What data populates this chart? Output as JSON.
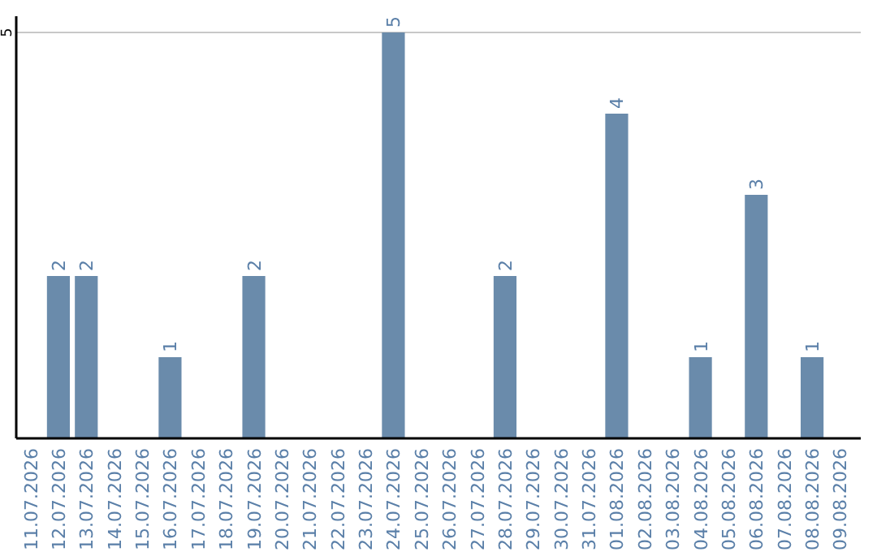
{
  "chart_data": {
    "type": "bar",
    "categories": [
      "11.07.2026",
      "12.07.2026",
      "13.07.2026",
      "14.07.2026",
      "15.07.2026",
      "16.07.2026",
      "17.07.2026",
      "18.07.2026",
      "19.07.2026",
      "20.07.2026",
      "21.07.2026",
      "22.07.2026",
      "23.07.2026",
      "24.07.2026",
      "25.07.2026",
      "26.07.2026",
      "27.07.2026",
      "28.07.2026",
      "29.07.2026",
      "30.07.2026",
      "31.07.2026",
      "01.08.2026",
      "02.08.2026",
      "03.08.2026",
      "04.08.2026",
      "05.08.2026",
      "06.08.2026",
      "07.08.2026",
      "08.08.2026",
      "09.08.2026"
    ],
    "values": [
      null,
      2,
      2,
      null,
      null,
      1,
      null,
      null,
      2,
      null,
      null,
      null,
      null,
      5,
      null,
      null,
      null,
      2,
      null,
      null,
      null,
      4,
      null,
      null,
      1,
      null,
      3,
      null,
      1,
      null
    ],
    "color": "#6a8bab",
    "ylim": [
      0,
      5.2
    ],
    "yticks": [
      5
    ],
    "grid": "y",
    "data_labels": true
  }
}
